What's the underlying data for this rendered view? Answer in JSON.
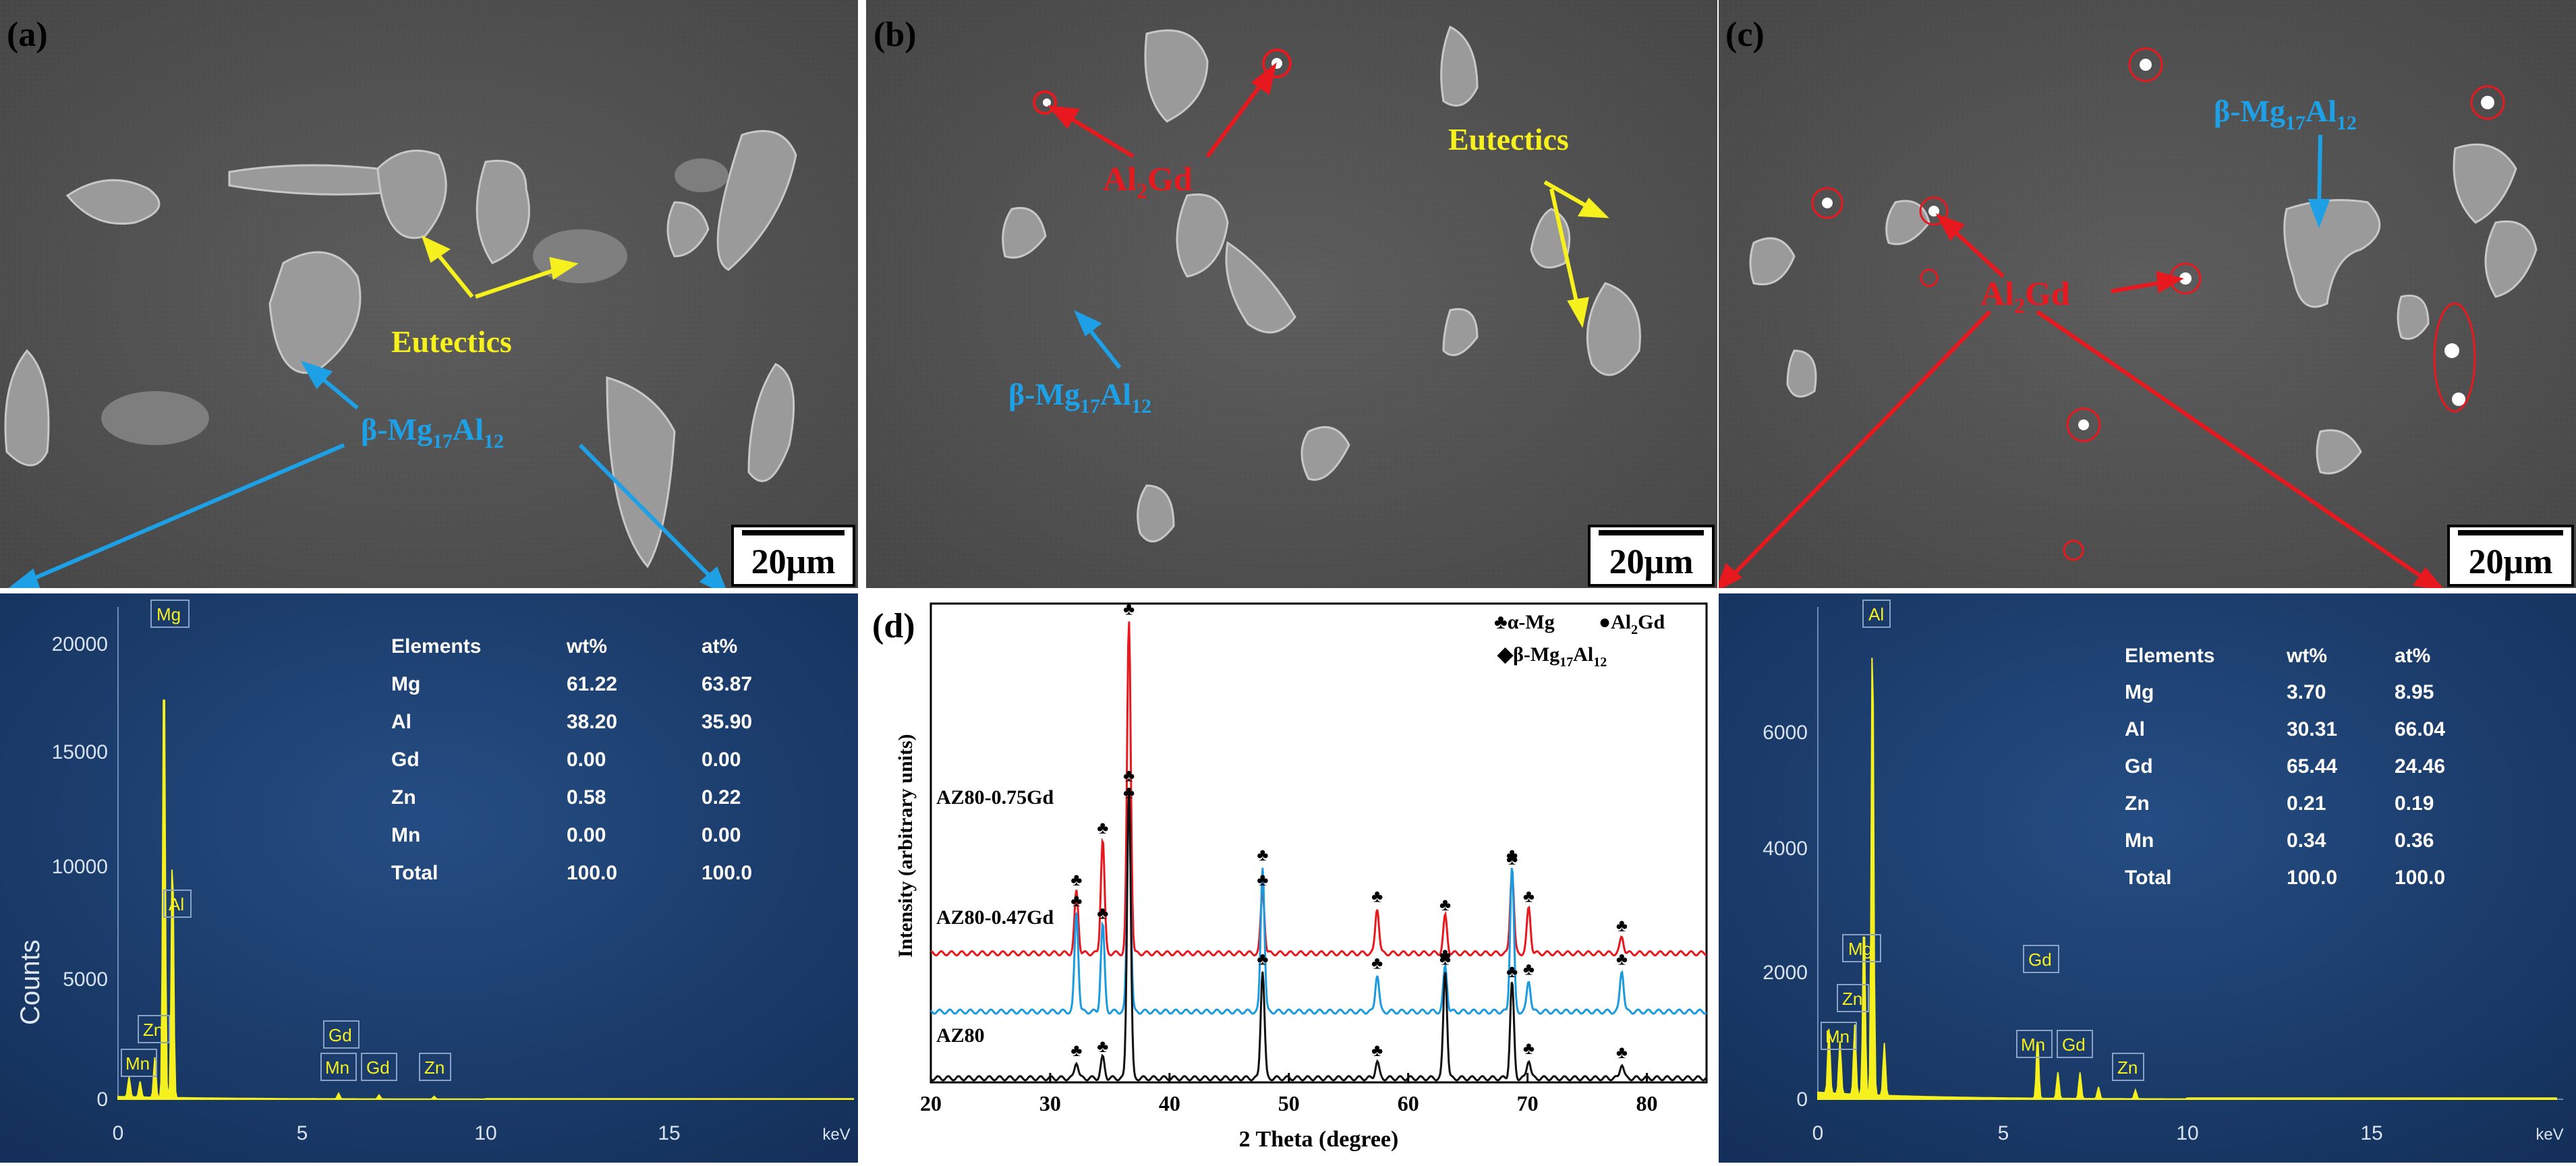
{
  "panels": {
    "a": {
      "label": "(a)",
      "scale_bar": "20μm",
      "annotations": {
        "eutectics": "Eutectics",
        "beta_prefix": "β-Mg",
        "beta_sub1": "17",
        "beta_mid": "Al",
        "beta_sub2": "12"
      },
      "eds": {
        "ylabel": "Counts",
        "yticks": [
          "20000",
          "15000",
          "10000",
          "5000",
          "0"
        ],
        "xticks": [
          "0",
          "5",
          "10",
          "15"
        ],
        "xunit": "keV",
        "peak_labels": [
          "Mg",
          "Al",
          "Zn",
          "Mn",
          "Gd",
          "Mn",
          "Gd",
          "Zn"
        ],
        "table": {
          "headers": [
            "Elements",
            "wt%",
            "at%"
          ],
          "rows": [
            [
              "Mg",
              "61.22",
              "63.87"
            ],
            [
              "Al",
              "38.20",
              "35.90"
            ],
            [
              "Gd",
              "0.00",
              "0.00"
            ],
            [
              "Zn",
              "0.58",
              "0.22"
            ],
            [
              "Mn",
              "0.00",
              "0.00"
            ],
            [
              "Total",
              "100.0",
              "100.0"
            ]
          ]
        }
      }
    },
    "b": {
      "label": "(b)",
      "scale_bar": "20μm",
      "annotations": {
        "al2gd_a": "Al",
        "al2gd_sub": "2",
        "al2gd_b": "Gd",
        "eutectics": "Eutectics",
        "beta_prefix": "β-Mg",
        "beta_sub1": "17",
        "beta_mid": "Al",
        "beta_sub2": "12"
      }
    },
    "c": {
      "label": "(c)",
      "scale_bar": "20μm",
      "annotations": {
        "al2gd_a": "Al",
        "al2gd_sub": "2",
        "al2gd_b": "Gd",
        "beta_prefix": "β-Mg",
        "beta_sub1": "17",
        "beta_mid": "Al",
        "beta_sub2": "12"
      },
      "eds": {
        "yticks": [
          "6000",
          "4000",
          "2000",
          "0"
        ],
        "xticks": [
          "0",
          "5",
          "10",
          "15"
        ],
        "xunit": "keV",
        "peak_labels": [
          "Al",
          "Mg",
          "Zn",
          "Mn",
          "Gd",
          "Mn",
          "Gd",
          "Zn"
        ],
        "table": {
          "headers": [
            "Elements",
            "wt%",
            "at%"
          ],
          "rows": [
            [
              "Mg",
              "3.70",
              "8.95"
            ],
            [
              "Al",
              "30.31",
              "66.04"
            ],
            [
              "Gd",
              "65.44",
              "24.46"
            ],
            [
              "Zn",
              "0.21",
              "0.19"
            ],
            [
              "Mn",
              "0.34",
              "0.36"
            ],
            [
              "Total",
              "100.0",
              "100.0"
            ]
          ]
        }
      }
    },
    "d": {
      "label": "(d)",
      "legend": {
        "alpha": "♣α-Mg",
        "al2gd_a": "●Al",
        "al2gd_sub": "2",
        "al2gd_b": "Gd",
        "beta_a": "◆β-Mg",
        "beta_sub1": "17",
        "beta_mid": "Al",
        "beta_sub2": "12"
      },
      "series_labels": [
        "AZ80-0.75Gd",
        "AZ80-0.47Gd",
        "AZ80"
      ]
    }
  },
  "chart_data": {
    "type": "line",
    "xlabel": "2 Theta (degree)",
    "ylabel": "Intensity (arbitrary units)",
    "xlim": [
      20,
      85
    ],
    "xticks": [
      20,
      30,
      40,
      50,
      60,
      70,
      80
    ],
    "series": [
      {
        "name": "AZ80-0.75Gd",
        "color": "#e8191e",
        "baseline": 0.62,
        "peaks": [
          [
            32.2,
            0.3
          ],
          [
            34.4,
            0.55
          ],
          [
            36.6,
            1.6
          ],
          [
            47.8,
            0.3
          ],
          [
            57.4,
            0.22
          ],
          [
            63.1,
            0.18
          ],
          [
            68.7,
            0.4
          ],
          [
            70.1,
            0.22
          ],
          [
            77.9,
            0.08
          ]
        ]
      },
      {
        "name": "AZ80-0.47Gd",
        "color": "#1a9be0",
        "baseline": 0.34,
        "peaks": [
          [
            32.2,
            0.48
          ],
          [
            34.4,
            0.42
          ],
          [
            36.6,
            1.0
          ],
          [
            47.8,
            0.7
          ],
          [
            57.4,
            0.18
          ],
          [
            63.1,
            0.22
          ],
          [
            68.7,
            0.7
          ],
          [
            70.1,
            0.15
          ],
          [
            77.9,
            0.2
          ]
        ]
      },
      {
        "name": "AZ80",
        "color": "#111111",
        "baseline": 0.02,
        "peaks": [
          [
            32.2,
            0.08
          ],
          [
            34.4,
            0.1
          ],
          [
            36.6,
            1.4
          ],
          [
            47.8,
            0.52
          ],
          [
            57.4,
            0.08
          ],
          [
            63.1,
            0.52
          ],
          [
            68.7,
            0.46
          ],
          [
            70.1,
            0.09
          ],
          [
            77.9,
            0.07
          ]
        ]
      }
    ]
  },
  "eds_spectra": {
    "a": {
      "xmax": 20,
      "ymax": 22000,
      "peaks": [
        [
          0.3,
          900
        ],
        [
          0.6,
          700
        ],
        [
          1.25,
          20500
        ],
        [
          1.48,
          11200
        ],
        [
          1.0,
          1800
        ],
        [
          6.0,
          250
        ],
        [
          7.1,
          180
        ],
        [
          8.6,
          120
        ]
      ]
    },
    "c": {
      "xmax": 20,
      "ymax": 8400,
      "peaks": [
        [
          0.3,
          1100
        ],
        [
          0.6,
          900
        ],
        [
          1.0,
          1200
        ],
        [
          1.25,
          3100
        ],
        [
          1.48,
          8200
        ],
        [
          1.8,
          900
        ],
        [
          5.95,
          1050
        ],
        [
          6.5,
          450
        ],
        [
          7.1,
          450
        ],
        [
          7.6,
          200
        ],
        [
          8.6,
          150
        ]
      ]
    }
  },
  "colors": {
    "red": "#e8191e",
    "blue": "#1ea0e6",
    "yellow": "#f5f01e",
    "eds_bg": "#1d3f6e"
  }
}
